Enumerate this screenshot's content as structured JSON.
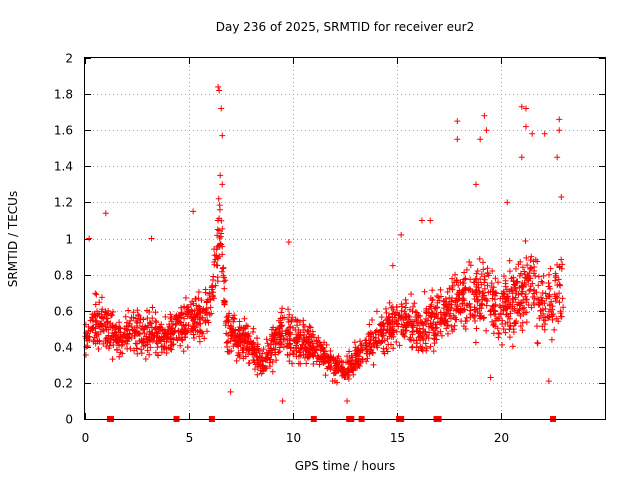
{
  "chart_data": {
    "type": "scatter",
    "title": "Day 236 of 2025, SRMTID for receiver eur2",
    "xlabel": "GPS time / hours",
    "ylabel": "SRMTID / TECUs",
    "xlim": [
      0,
      25
    ],
    "ylim": [
      0,
      2
    ],
    "x_ticks": [
      0,
      5,
      10,
      15,
      20
    ],
    "x_tick_labels": [
      "0",
      "5",
      "10",
      "15",
      "20"
    ],
    "y_ticks": [
      0,
      0.2,
      0.4,
      0.6,
      0.8,
      1,
      1.2,
      1.4,
      1.6,
      1.8,
      2
    ],
    "y_tick_labels": [
      "0",
      "0.2",
      "0.4",
      "0.6",
      "0.8",
      "1",
      "1.2",
      "1.4",
      "1.6",
      "1.8",
      "2"
    ],
    "grid": true,
    "marker": "+",
    "color": "#ff0000",
    "series": [
      {
        "name": "SRMTID",
        "profile": [
          {
            "x": 0.0,
            "y": 0.45,
            "spread": 0.17
          },
          {
            "x": 0.5,
            "y": 0.55,
            "spread": 0.22
          },
          {
            "x": 1.0,
            "y": 0.52,
            "spread": 0.22
          },
          {
            "x": 1.5,
            "y": 0.45,
            "spread": 0.15
          },
          {
            "x": 2.0,
            "y": 0.47,
            "spread": 0.15
          },
          {
            "x": 3.0,
            "y": 0.48,
            "spread": 0.2
          },
          {
            "x": 4.0,
            "y": 0.45,
            "spread": 0.15
          },
          {
            "x": 5.0,
            "y": 0.55,
            "spread": 0.18
          },
          {
            "x": 6.0,
            "y": 0.6,
            "spread": 0.2
          },
          {
            "x": 6.5,
            "y": 1.1,
            "spread": 0.3
          },
          {
            "x": 6.8,
            "y": 0.5,
            "spread": 0.2
          },
          {
            "x": 8.0,
            "y": 0.42,
            "spread": 0.15
          },
          {
            "x": 8.5,
            "y": 0.3,
            "spread": 0.1
          },
          {
            "x": 9.5,
            "y": 0.5,
            "spread": 0.2
          },
          {
            "x": 10.0,
            "y": 0.45,
            "spread": 0.2
          },
          {
            "x": 11.0,
            "y": 0.38,
            "spread": 0.13
          },
          {
            "x": 12.0,
            "y": 0.3,
            "spread": 0.12
          },
          {
            "x": 12.5,
            "y": 0.25,
            "spread": 0.1
          },
          {
            "x": 13.5,
            "y": 0.4,
            "spread": 0.15
          },
          {
            "x": 15.0,
            "y": 0.55,
            "spread": 0.2
          },
          {
            "x": 16.0,
            "y": 0.5,
            "spread": 0.2
          },
          {
            "x": 17.0,
            "y": 0.55,
            "spread": 0.22
          },
          {
            "x": 18.0,
            "y": 0.65,
            "spread": 0.25
          },
          {
            "x": 19.0,
            "y": 0.7,
            "spread": 0.3
          },
          {
            "x": 20.0,
            "y": 0.6,
            "spread": 0.25
          },
          {
            "x": 21.0,
            "y": 0.7,
            "spread": 0.3
          },
          {
            "x": 21.5,
            "y": 0.75,
            "spread": 0.35
          },
          {
            "x": 22.0,
            "y": 0.6,
            "spread": 0.25
          },
          {
            "x": 23.0,
            "y": 0.7,
            "spread": 0.3
          }
        ],
        "sample_count": 2000,
        "outliers": [
          {
            "x": 6.4,
            "y": 1.84
          },
          {
            "x": 6.45,
            "y": 1.82
          },
          {
            "x": 6.55,
            "y": 1.72
          },
          {
            "x": 6.6,
            "y": 1.57
          },
          {
            "x": 6.5,
            "y": 1.35
          },
          {
            "x": 6.6,
            "y": 1.3
          },
          {
            "x": 1.0,
            "y": 1.14
          },
          {
            "x": 0.2,
            "y": 1.0
          },
          {
            "x": 3.2,
            "y": 1.0
          },
          {
            "x": 5.2,
            "y": 1.15
          },
          {
            "x": 9.8,
            "y": 0.98
          },
          {
            "x": 15.2,
            "y": 1.02
          },
          {
            "x": 16.2,
            "y": 1.1
          },
          {
            "x": 16.6,
            "y": 1.1
          },
          {
            "x": 17.9,
            "y": 1.65
          },
          {
            "x": 17.9,
            "y": 1.55
          },
          {
            "x": 19.2,
            "y": 1.68
          },
          {
            "x": 19.3,
            "y": 1.6
          },
          {
            "x": 19.0,
            "y": 1.55
          },
          {
            "x": 18.8,
            "y": 1.3
          },
          {
            "x": 21.0,
            "y": 1.73
          },
          {
            "x": 21.2,
            "y": 1.72
          },
          {
            "x": 21.2,
            "y": 1.62
          },
          {
            "x": 21.5,
            "y": 1.58
          },
          {
            "x": 22.1,
            "y": 1.58
          },
          {
            "x": 22.8,
            "y": 1.66
          },
          {
            "x": 22.8,
            "y": 1.6
          },
          {
            "x": 22.7,
            "y": 1.45
          },
          {
            "x": 22.9,
            "y": 1.23
          },
          {
            "x": 21.0,
            "y": 1.45
          },
          {
            "x": 20.3,
            "y": 1.2
          },
          {
            "x": 12.6,
            "y": 0.1
          },
          {
            "x": 7.0,
            "y": 0.15
          },
          {
            "x": 9.5,
            "y": 0.1
          },
          {
            "x": 22.3,
            "y": 0.21
          },
          {
            "x": 19.5,
            "y": 0.23
          },
          {
            "x": 14.8,
            "y": 0.85
          }
        ]
      }
    ],
    "gaps_at_zero": [
      1.2,
      1.25,
      4.4,
      6.1,
      11.0,
      12.7,
      12.8,
      13.3,
      15.1,
      15.2,
      16.9,
      17.0,
      22.5
    ]
  }
}
